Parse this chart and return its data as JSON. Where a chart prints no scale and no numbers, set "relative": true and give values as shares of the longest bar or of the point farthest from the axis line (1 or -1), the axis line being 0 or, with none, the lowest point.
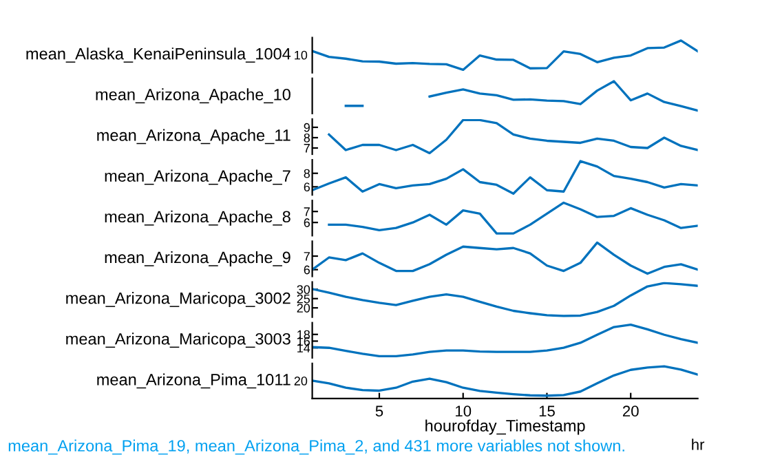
{
  "chart_data": [
    {
      "type": "line",
      "ylabel": "mean_Alaska_KenaiPeninsula_1004",
      "relative": true,
      "x": [
        1,
        2,
        3,
        4,
        5,
        6,
        7,
        8,
        9,
        10,
        11,
        12,
        13,
        14,
        15,
        16,
        17,
        18,
        19,
        20,
        21,
        22,
        23,
        24
      ],
      "annotations": [
        "10"
      ],
      "tick_labels": "y",
      "color": "#0072bd",
      "values": [
        0.64,
        0.44,
        0.38,
        0.29,
        0.28,
        0.21,
        0.23,
        0.2,
        0.19,
        0,
        0.49,
        0.35,
        0.34,
        0.05,
        0.06,
        0.63,
        0.54,
        0.26,
        0.41,
        0.49,
        0.74,
        0.76,
        1,
        0.63
      ]
    },
    {
      "type": "line",
      "ylabel": "mean_Arizona_Apache_10",
      "relative": true,
      "x": [
        1,
        2,
        3,
        4,
        5,
        6,
        7,
        8,
        9,
        10,
        11,
        12,
        13,
        14,
        15,
        16,
        17,
        18,
        19,
        20,
        21,
        22,
        23,
        24
      ],
      "tick_labels": false,
      "color": "#0072bd",
      "values": [
        null,
        null,
        0.16,
        0.16,
        null,
        null,
        null,
        0.48,
        0.61,
        0.72,
        0.58,
        0.52,
        0.37,
        0.38,
        0.34,
        0.32,
        0.22,
        0.68,
        1,
        0.35,
        0.58,
        0.29,
        0.15,
        0
      ]
    },
    {
      "type": "line",
      "ylabel": "mean_Arizona_Apache_11",
      "x": [
        1,
        2,
        3,
        4,
        5,
        6,
        7,
        8,
        9,
        10,
        11,
        12,
        13,
        14,
        15,
        16,
        17,
        18,
        19,
        20,
        21,
        22,
        23,
        24
      ],
      "ylim": [
        6.4,
        9.8
      ],
      "yticks": [
        7,
        8,
        9
      ],
      "tick_labels": "y",
      "color": "#0072bd",
      "values": [
        null,
        8.3,
        6.8,
        7.3,
        7.3,
        6.8,
        7.3,
        6.5,
        7.8,
        9.7,
        9.7,
        9.4,
        8.3,
        7.9,
        7.7,
        7.6,
        7.5,
        7.9,
        7.7,
        7.1,
        7.0,
        8.0,
        7.2,
        6.8
      ]
    },
    {
      "type": "line",
      "ylabel": "mean_Arizona_Apache_7",
      "x": [
        1,
        2,
        3,
        4,
        5,
        6,
        7,
        8,
        9,
        10,
        11,
        12,
        13,
        14,
        15,
        16,
        17,
        18,
        19,
        20,
        21,
        22,
        23,
        24
      ],
      "ylim": [
        4.8,
        10
      ],
      "yticks": [
        6,
        8
      ],
      "tick_labels": "y",
      "color": "#0072bd",
      "values": [
        5.5,
        6.5,
        7.4,
        5.3,
        6.4,
        5.8,
        6.2,
        6.4,
        7.2,
        8.6,
        6.7,
        6.3,
        5.0,
        7.4,
        5.5,
        5.3,
        9.8,
        9.0,
        7.6,
        7.2,
        6.7,
        5.9,
        6.4,
        6.2
      ]
    },
    {
      "type": "line",
      "ylabel": "mean_Arizona_Apache_8",
      "x": [
        1,
        2,
        3,
        4,
        5,
        6,
        7,
        8,
        9,
        10,
        11,
        12,
        13,
        14,
        15,
        16,
        17,
        18,
        19,
        20,
        21,
        22,
        23,
        24
      ],
      "ylim": [
        4.8,
        8
      ],
      "yticks": [
        6,
        7
      ],
      "tick_labels": "y",
      "color": "#0072bd",
      "values": [
        null,
        5.8,
        5.8,
        5.6,
        5.3,
        5.5,
        6.0,
        6.7,
        5.8,
        7.1,
        6.8,
        5.0,
        5.0,
        5.8,
        6.8,
        7.8,
        7.2,
        6.5,
        6.6,
        7.3,
        6.7,
        6.2,
        5.5,
        5.7
      ]
    },
    {
      "type": "line",
      "ylabel": "mean_Arizona_Apache_9",
      "x": [
        1,
        2,
        3,
        4,
        5,
        6,
        7,
        8,
        9,
        10,
        11,
        12,
        13,
        14,
        15,
        16,
        17,
        18,
        19,
        20,
        21,
        22,
        23,
        24
      ],
      "ylim": [
        5.5,
        8.1
      ],
      "yticks": [
        6,
        7
      ],
      "tick_labels": "y",
      "color": "#0072bd",
      "values": [
        6.0,
        6.9,
        6.7,
        7.2,
        6.5,
        5.9,
        5.9,
        6.4,
        7.1,
        7.7,
        7.6,
        7.5,
        7.6,
        7.2,
        6.3,
        5.9,
        6.5,
        8.0,
        7.1,
        6.3,
        5.7,
        6.2,
        6.4,
        6.0
      ]
    },
    {
      "type": "line",
      "ylabel": "mean_Arizona_Maricopa_3002",
      "x": [
        1,
        2,
        3,
        4,
        5,
        6,
        7,
        8,
        9,
        10,
        11,
        12,
        13,
        14,
        15,
        16,
        17,
        18,
        19,
        20,
        21,
        22,
        23,
        24
      ],
      "ylim": [
        15,
        34
      ],
      "yticks": [
        20,
        25,
        30
      ],
      "tick_labels": "y",
      "color": "#0072bd",
      "values": [
        30.2,
        28.2,
        26.0,
        24.2,
        22.7,
        21.5,
        23.8,
        26.0,
        27.3,
        26.0,
        23.3,
        20.7,
        18.4,
        17.1,
        16.0,
        15.6,
        15.8,
        17.8,
        21.1,
        26.7,
        31.6,
        33.4,
        32.8,
        31.9
      ]
    },
    {
      "type": "line",
      "ylabel": "mean_Arizona_Maricopa_3003",
      "x": [
        1,
        2,
        3,
        4,
        5,
        6,
        7,
        8,
        9,
        10,
        11,
        12,
        13,
        14,
        15,
        16,
        17,
        18,
        19,
        20,
        21,
        22,
        23,
        24
      ],
      "ylim": [
        11,
        21.5
      ],
      "yticks": [
        14,
        16,
        18
      ],
      "tick_labels": "y",
      "color": "#0072bd",
      "values": [
        14.2,
        14.0,
        13.1,
        12.2,
        11.5,
        11.5,
        12.0,
        12.8,
        13.2,
        13.2,
        12.9,
        12.8,
        12.8,
        12.8,
        13.2,
        14.0,
        15.5,
        17.9,
        20.2,
        20.9,
        19.5,
        17.9,
        16.6,
        15.5
      ]
    },
    {
      "type": "line",
      "ylabel": "mean_Arizona_Pima_1011",
      "relative": true,
      "x": [
        1,
        2,
        3,
        4,
        5,
        6,
        7,
        8,
        9,
        10,
        11,
        12,
        13,
        14,
        15,
        16,
        17,
        18,
        19,
        20,
        21,
        22,
        23,
        24
      ],
      "xlim": [
        1,
        24
      ],
      "xticks": [
        5,
        10,
        15,
        20
      ],
      "xlabel": "hourofday_Timestamp",
      "color": "#0072bd",
      "values": [
        0.51,
        0.42,
        0.27,
        0.19,
        0.17,
        0.27,
        0.48,
        0.58,
        0.46,
        0.27,
        0.16,
        0.1,
        0.05,
        0.01,
        0,
        0.02,
        0.14,
        0.42,
        0.69,
        0.88,
        0.96,
        1,
        0.89,
        0.72
      ],
      "annotations": [
        "20",
        "hr",
        "mean_Arizona_Pima_19, mean_Arizona_Pima_2, and 431 more variables not shown."
      ]
    }
  ]
}
